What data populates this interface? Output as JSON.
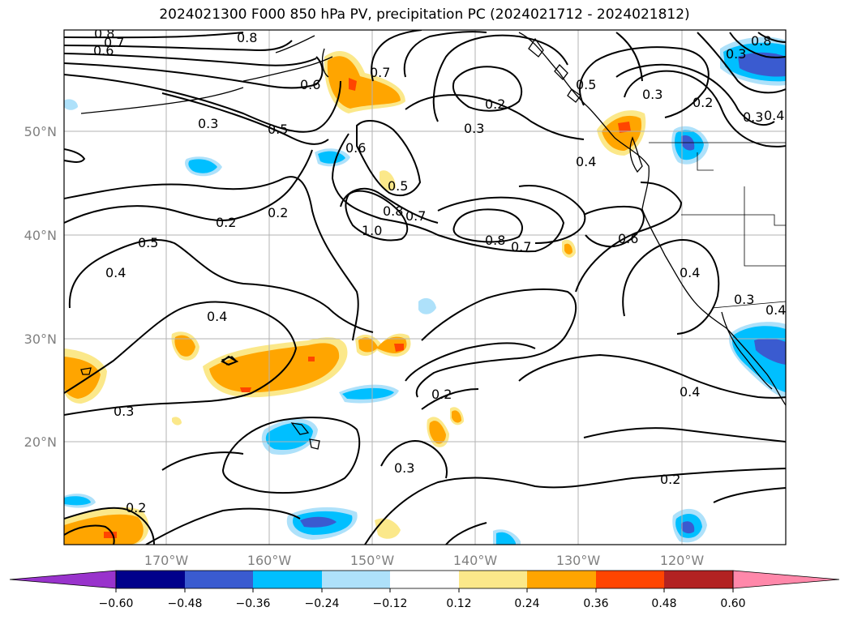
{
  "title": "2024021300 F000 850 hPa PV, precipitation PC (2024021712 - 2024021812)",
  "map": {
    "lat_ticks": [
      "50°N",
      "40°N",
      "30°N",
      "20°N"
    ],
    "lon_ticks": [
      "170°W",
      "160°W",
      "150°W",
      "140°W",
      "130°W",
      "120°W"
    ]
  },
  "contour_labels": [
    "0.8",
    "0.7",
    "0.6",
    "0.8",
    "0.7",
    "0.6",
    "0.5",
    "0.2",
    "0.3",
    "0.3",
    "0.4",
    "0.3",
    "0.5",
    "0.6",
    "0.5",
    "0.2",
    "0.2",
    "0.5",
    "0.4",
    "1.0",
    "0.8",
    "0.7",
    "0.8",
    "0.7",
    "0.6",
    "0.4",
    "0.3",
    "0.4",
    "0.4",
    "0.3",
    "0.2",
    "0.3",
    "0.4",
    "0.2",
    "0.2",
    "0.3",
    "0.3",
    "0.4",
    "0.2",
    "0.8"
  ],
  "colorbar": {
    "ticks": [
      "−0.60",
      "−0.48",
      "−0.36",
      "−0.24",
      "−0.12",
      "0.12",
      "0.24",
      "0.36",
      "0.48",
      "0.60"
    ],
    "colors": {
      "under": "#9933cc",
      "-0.60": "#00008b",
      "-0.48": "#3a5bd0",
      "-0.36": "#00bfff",
      "-0.24": "#aee1fa",
      "-0.12": "#ffffff",
      "0.12": "#fbe88a",
      "0.24": "#ffa500",
      "0.36": "#ff4500",
      "0.48": "#b22222",
      "over": "#ff88aa"
    }
  }
}
